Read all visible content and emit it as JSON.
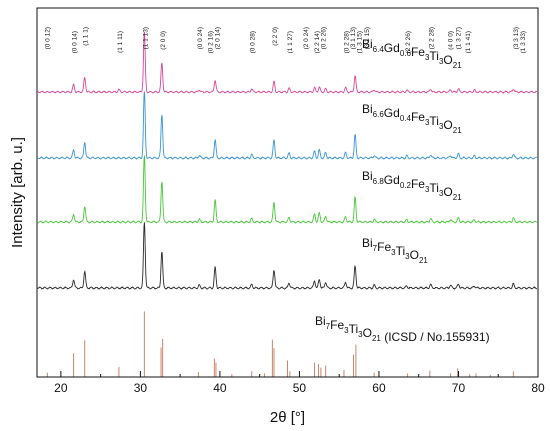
{
  "chart_data": {
    "type": "line",
    "title": "",
    "xlabel": "2θ [°]",
    "ylabel": "Intensity [arb. u.]",
    "xlim": [
      17,
      80
    ],
    "xticks": [
      20,
      30,
      40,
      50,
      60,
      70,
      80
    ],
    "yticks": [],
    "grid": false,
    "legend": "none",
    "series": [
      {
        "name_parts": [
          [
            "Bi",
            "6.4"
          ],
          [
            "Gd",
            "0.6"
          ],
          [
            "Fe",
            "3"
          ],
          [
            "Ti",
            "3"
          ],
          [
            "O",
            "21"
          ]
        ],
        "color": "#d6489a",
        "peaks": [
          [
            21.6,
            0.12
          ],
          [
            23.0,
            0.24
          ],
          [
            27.3,
            0.04
          ],
          [
            30.5,
            1.0
          ],
          [
            32.7,
            0.48
          ],
          [
            37.4,
            0.04
          ],
          [
            39.4,
            0.2
          ],
          [
            44.0,
            0.05
          ],
          [
            46.8,
            0.17
          ],
          [
            48.7,
            0.06
          ],
          [
            51.9,
            0.07
          ],
          [
            52.5,
            0.08
          ],
          [
            53.3,
            0.05
          ],
          [
            55.8,
            0.07
          ],
          [
            57.0,
            0.27
          ],
          [
            59.4,
            0.04
          ],
          [
            63.5,
            0.03
          ],
          [
            66.5,
            0.05
          ],
          [
            69.0,
            0.04
          ],
          [
            70.0,
            0.05
          ],
          [
            72.0,
            0.03
          ],
          [
            76.9,
            0.05
          ]
        ]
      },
      {
        "name_parts": [
          [
            "Bi",
            "6.6"
          ],
          [
            "Gd",
            "0.4"
          ],
          [
            "Fe",
            "3"
          ],
          [
            "Ti",
            "3"
          ],
          [
            "O",
            "21"
          ]
        ],
        "color": "#3a95d8",
        "peaks": [
          [
            21.6,
            0.12
          ],
          [
            23.0,
            0.24
          ],
          [
            30.5,
            1.0
          ],
          [
            32.7,
            0.66
          ],
          [
            37.4,
            0.04
          ],
          [
            39.4,
            0.28
          ],
          [
            44.0,
            0.05
          ],
          [
            46.8,
            0.27
          ],
          [
            48.7,
            0.07
          ],
          [
            51.9,
            0.1
          ],
          [
            52.5,
            0.12
          ],
          [
            53.3,
            0.08
          ],
          [
            55.8,
            0.08
          ],
          [
            57.0,
            0.35
          ],
          [
            59.4,
            0.04
          ],
          [
            63.5,
            0.03
          ],
          [
            66.5,
            0.05
          ],
          [
            69.0,
            0.04
          ],
          [
            70.0,
            0.06
          ],
          [
            72.0,
            0.03
          ],
          [
            76.9,
            0.06
          ]
        ]
      },
      {
        "name_parts": [
          [
            "Bi",
            "6.8"
          ],
          [
            "Gd",
            "0.2"
          ],
          [
            "Fe",
            "3"
          ],
          [
            "Ti",
            "3"
          ],
          [
            "O",
            "21"
          ]
        ],
        "color": "#49c83a",
        "peaks": [
          [
            21.6,
            0.12
          ],
          [
            23.0,
            0.24
          ],
          [
            30.5,
            1.0
          ],
          [
            32.7,
            0.62
          ],
          [
            37.4,
            0.04
          ],
          [
            39.4,
            0.33
          ],
          [
            44.0,
            0.05
          ],
          [
            46.8,
            0.3
          ],
          [
            48.7,
            0.07
          ],
          [
            51.9,
            0.12
          ],
          [
            52.5,
            0.14
          ],
          [
            53.3,
            0.09
          ],
          [
            55.8,
            0.08
          ],
          [
            57.0,
            0.37
          ],
          [
            59.4,
            0.04
          ],
          [
            63.5,
            0.03
          ],
          [
            66.5,
            0.05
          ],
          [
            69.0,
            0.04
          ],
          [
            70.0,
            0.06
          ],
          [
            72.0,
            0.03
          ],
          [
            76.9,
            0.06
          ]
        ]
      },
      {
        "name_parts": [
          [
            "Bi",
            "7"
          ],
          [
            "Fe",
            "3"
          ],
          [
            "Ti",
            "3"
          ],
          [
            "O",
            "21"
          ]
        ],
        "color": "#2a2a2a",
        "peaks": [
          [
            21.6,
            0.13
          ],
          [
            23.0,
            0.25
          ],
          [
            30.5,
            1.0
          ],
          [
            32.7,
            0.55
          ],
          [
            37.4,
            0.04
          ],
          [
            39.4,
            0.31
          ],
          [
            44.0,
            0.05
          ],
          [
            46.8,
            0.28
          ],
          [
            48.7,
            0.08
          ],
          [
            51.9,
            0.11
          ],
          [
            52.5,
            0.13
          ],
          [
            53.3,
            0.09
          ],
          [
            55.8,
            0.09
          ],
          [
            57.0,
            0.33
          ],
          [
            59.4,
            0.04
          ],
          [
            63.5,
            0.03
          ],
          [
            66.5,
            0.05
          ],
          [
            69.0,
            0.04
          ],
          [
            70.0,
            0.06
          ],
          [
            72.0,
            0.03
          ],
          [
            76.9,
            0.06
          ]
        ]
      }
    ],
    "reference": {
      "name_parts": [
        [
          "Bi",
          "7"
        ],
        [
          "Fe",
          "3"
        ],
        [
          "Ti",
          "3"
        ],
        [
          "O",
          "21"
        ]
      ],
      "name_suffix": " (ICSD / No.155931)",
      "color": "#c9866a",
      "lines": [
        [
          18.3,
          0.06
        ],
        [
          21.6,
          0.33
        ],
        [
          23.0,
          0.51
        ],
        [
          27.3,
          0.14
        ],
        [
          30.5,
          0.91
        ],
        [
          32.6,
          0.41
        ],
        [
          32.8,
          0.53
        ],
        [
          37.3,
          0.07
        ],
        [
          39.3,
          0.26
        ],
        [
          39.5,
          0.2
        ],
        [
          41.5,
          0.04
        ],
        [
          44.0,
          0.08
        ],
        [
          45.6,
          0.05
        ],
        [
          46.6,
          0.52
        ],
        [
          46.8,
          0.4
        ],
        [
          48.5,
          0.23
        ],
        [
          48.8,
          0.08
        ],
        [
          51.9,
          0.2
        ],
        [
          52.4,
          0.18
        ],
        [
          52.7,
          0.13
        ],
        [
          53.3,
          0.16
        ],
        [
          55.6,
          0.1
        ],
        [
          56.8,
          0.31
        ],
        [
          57.1,
          0.45
        ],
        [
          59.4,
          0.06
        ],
        [
          63.6,
          0.05
        ],
        [
          66.4,
          0.09
        ],
        [
          69.0,
          0.05
        ],
        [
          69.9,
          0.12
        ],
        [
          71.4,
          0.04
        ],
        [
          72.2,
          0.05
        ],
        [
          74.0,
          0.03
        ],
        [
          76.9,
          0.08
        ]
      ]
    },
    "hkl_labels": [
      {
        "x": 18.2,
        "text": "(0 0 12)"
      },
      {
        "x": 21.6,
        "text": "(0 0 14)"
      },
      {
        "x": 23.0,
        "text": "(1 1 1)"
      },
      {
        "x": 27.3,
        "text": "(1 1 11)"
      },
      {
        "x": 30.5,
        "text": "(1 1 13)"
      },
      {
        "x": 32.7,
        "text": "(2 0 0)"
      },
      {
        "x": 37.4,
        "text": "(0 0 24)"
      },
      {
        "x": 38.7,
        "text": "(0 2 16)"
      },
      {
        "x": 39.6,
        "text": "(2 0 14)"
      },
      {
        "x": 44.0,
        "text": "(0 0 28)"
      },
      {
        "x": 46.8,
        "text": "(2 2 0)"
      },
      {
        "x": 48.7,
        "text": "(1 1 27)"
      },
      {
        "x": 50.7,
        "text": "(2 0 24)"
      },
      {
        "x": 52.1,
        "text": "(2 2 14)"
      },
      {
        "x": 52.9,
        "text": "(0 2 26)"
      },
      {
        "x": 55.8,
        "text": "(0 2 28)"
      },
      {
        "x": 56.6,
        "text": "(3 1 13)"
      },
      {
        "x": 57.4,
        "text": "(1 3 15)"
      },
      {
        "x": 58.4,
        "text": "(3 1 15)"
      },
      {
        "x": 63.5,
        "text": "(2 2 26)"
      },
      {
        "x": 66.5,
        "text": "(2 2 28)"
      },
      {
        "x": 68.9,
        "text": "(4 0 0)"
      },
      {
        "x": 69.9,
        "text": "(1 3 27)"
      },
      {
        "x": 71.1,
        "text": "(1 1 41)"
      },
      {
        "x": 77.1,
        "text": "(3 3 13)"
      },
      {
        "x": 78.0,
        "text": "(1 3 33)"
      }
    ]
  }
}
